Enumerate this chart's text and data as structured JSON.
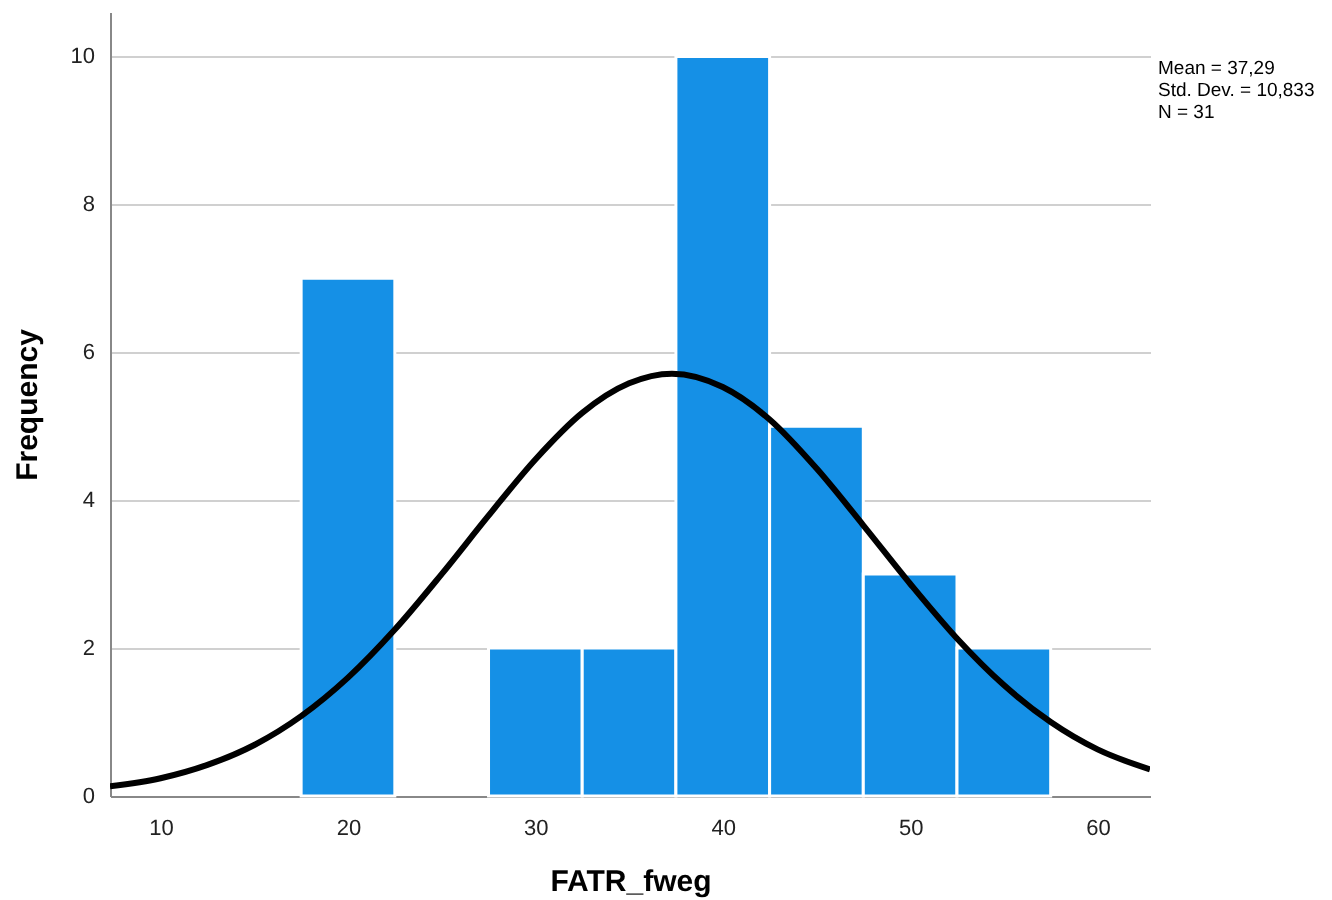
{
  "chart_data": {
    "type": "histogram",
    "xlabel": "FATR_fweg",
    "ylabel": "Frequency",
    "bins": [
      17.5,
      22.5,
      27.5,
      32.5,
      37.5,
      42.5,
      47.5,
      52.5,
      57.5
    ],
    "values": [
      7,
      0,
      2,
      2,
      10,
      5,
      3,
      2
    ],
    "color": "#1590e6",
    "series": [
      {
        "type": "line",
        "color": "#000000",
        "x": [
          7.3,
          10,
          12.5,
          15,
          17.5,
          20,
          22.5,
          25,
          27.5,
          30,
          32.5,
          35,
          37.29,
          40,
          42.5,
          45,
          47.5,
          50,
          52.5,
          55,
          57.5,
          60,
          62.8
        ],
        "values": [
          0.13,
          0.24,
          0.42,
          0.69,
          1.08,
          1.6,
          2.25,
          3.0,
          3.79,
          4.55,
          5.18,
          5.58,
          5.71,
          5.53,
          5.09,
          4.43,
          3.66,
          2.87,
          2.13,
          1.5,
          1.0,
          0.63,
          0.36
        ]
      }
    ],
    "xlim": [
      7.3,
      62.8
    ],
    "xticks": [
      10,
      20,
      30,
      40,
      50,
      60
    ],
    "ylim": [
      0,
      10.6
    ],
    "yticks": [
      0,
      2,
      4,
      6,
      8,
      10
    ],
    "grid": "y",
    "annotations": [
      "Mean = 37,29",
      "Std. Dev. = 10,833",
      "N = 31"
    ]
  }
}
